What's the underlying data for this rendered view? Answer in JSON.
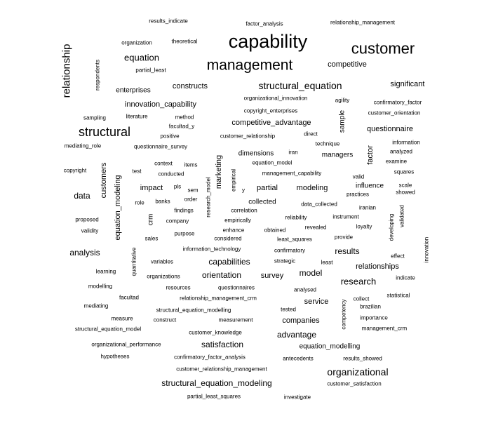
{
  "words": [
    {
      "text": "capability",
      "weight": 10
    },
    {
      "text": "customer",
      "weight": 9
    },
    {
      "text": "management",
      "weight": 8
    },
    {
      "text": "structural",
      "weight": 7
    },
    {
      "text": "relationship",
      "weight": 6
    },
    {
      "text": "structural_equation",
      "weight": 5
    },
    {
      "text": "organizational",
      "weight": 5
    },
    {
      "text": "equation",
      "weight": 5
    },
    {
      "text": "research",
      "weight": 4
    },
    {
      "text": "results",
      "weight": 4
    },
    {
      "text": "model",
      "weight": 4
    },
    {
      "text": "analysis",
      "weight": 4
    },
    {
      "text": "data",
      "weight": 4
    },
    {
      "text": "capabilities",
      "weight": 4
    },
    {
      "text": "orientation",
      "weight": 4
    },
    {
      "text": "satisfaction",
      "weight": 4
    },
    {
      "text": "advantage",
      "weight": 4
    },
    {
      "text": "structural_equation_modeling",
      "weight": 4
    },
    {
      "text": "questionnaire",
      "weight": 3
    },
    {
      "text": "competitive_advantage",
      "weight": 3
    },
    {
      "text": "innovation_capability",
      "weight": 3
    },
    {
      "text": "significant",
      "weight": 3
    },
    {
      "text": "competitive",
      "weight": 3
    },
    {
      "text": "constructs",
      "weight": 3
    },
    {
      "text": "relationships",
      "weight": 3
    },
    {
      "text": "modeling",
      "weight": 3
    },
    {
      "text": "marketing",
      "weight": 3
    },
    {
      "text": "partial",
      "weight": 3
    },
    {
      "text": "impact",
      "weight": 3
    },
    {
      "text": "survey",
      "weight": 3
    },
    {
      "text": "service",
      "weight": 3
    },
    {
      "text": "companies",
      "weight": 3
    },
    {
      "text": "customers",
      "weight": 3
    },
    {
      "text": "equation_modeling",
      "weight": 3
    },
    {
      "text": "factor",
      "weight": 2
    },
    {
      "text": "managers",
      "weight": 2
    },
    {
      "text": "dimensions",
      "weight": 2
    },
    {
      "text": "influence",
      "weight": 2
    },
    {
      "text": "collected",
      "weight": 2
    },
    {
      "text": "enterprises",
      "weight": 2
    },
    {
      "text": "crm",
      "weight": 2
    },
    {
      "text": "sample",
      "weight": 2
    },
    {
      "text": "equation_modelling",
      "weight": 2
    },
    {
      "text": "results_indicate",
      "weight": 1
    },
    {
      "text": "factor_analysis",
      "weight": 1
    },
    {
      "text": "relationship_management",
      "weight": 1
    },
    {
      "text": "organization",
      "weight": 1
    },
    {
      "text": "theoretical",
      "weight": 1
    },
    {
      "text": "respondents",
      "weight": 1
    },
    {
      "text": "partial_least",
      "weight": 1
    },
    {
      "text": "organizational_innovation",
      "weight": 1
    },
    {
      "text": "agility",
      "weight": 1
    },
    {
      "text": "confirmatory_factor",
      "weight": 1
    },
    {
      "text": "copyright_enterprises",
      "weight": 1
    },
    {
      "text": "customer_orientation",
      "weight": 1
    },
    {
      "text": "sampling",
      "weight": 1
    },
    {
      "text": "literature",
      "weight": 1
    },
    {
      "text": "method",
      "weight": 1
    },
    {
      "text": "facultad_y",
      "weight": 1
    },
    {
      "text": "positive",
      "weight": 1
    },
    {
      "text": "customer_relationship",
      "weight": 1
    },
    {
      "text": "direct",
      "weight": 1
    },
    {
      "text": "technique",
      "weight": 1
    },
    {
      "text": "information",
      "weight": 1
    },
    {
      "text": "mediating_role",
      "weight": 1
    },
    {
      "text": "questionnaire_survey",
      "weight": 1
    },
    {
      "text": "iran",
      "weight": 1
    },
    {
      "text": "analyzed",
      "weight": 1
    },
    {
      "text": "context",
      "weight": 1
    },
    {
      "text": "items",
      "weight": 1
    },
    {
      "text": "equation_model",
      "weight": 1
    },
    {
      "text": "examine",
      "weight": 1
    },
    {
      "text": "copyright",
      "weight": 1
    },
    {
      "text": "test",
      "weight": 1
    },
    {
      "text": "conducted",
      "weight": 1
    },
    {
      "text": "research_model",
      "weight": 1
    },
    {
      "text": "empirical",
      "weight": 1
    },
    {
      "text": "management_capability",
      "weight": 1
    },
    {
      "text": "squares",
      "weight": 1
    },
    {
      "text": "valid",
      "weight": 1
    },
    {
      "text": "pls",
      "weight": 1
    },
    {
      "text": "sem",
      "weight": 1
    },
    {
      "text": "y",
      "weight": 1
    },
    {
      "text": "scale",
      "weight": 1
    },
    {
      "text": "showed",
      "weight": 1
    },
    {
      "text": "practices",
      "weight": 1
    },
    {
      "text": "role",
      "weight": 1
    },
    {
      "text": "banks",
      "weight": 1
    },
    {
      "text": "order",
      "weight": 1
    },
    {
      "text": "data_collected",
      "weight": 1
    },
    {
      "text": "iranian",
      "weight": 1
    },
    {
      "text": "findings",
      "weight": 1
    },
    {
      "text": "correlation",
      "weight": 1
    },
    {
      "text": "validated",
      "weight": 1
    },
    {
      "text": "proposed",
      "weight": 1
    },
    {
      "text": "company",
      "weight": 1
    },
    {
      "text": "empirically",
      "weight": 1
    },
    {
      "text": "reliability",
      "weight": 1
    },
    {
      "text": "instrument",
      "weight": 1
    },
    {
      "text": "validity",
      "weight": 1
    },
    {
      "text": "enhance",
      "weight": 1
    },
    {
      "text": "obtained",
      "weight": 1
    },
    {
      "text": "revealed",
      "weight": 1
    },
    {
      "text": "loyalty",
      "weight": 1
    },
    {
      "text": "developing",
      "weight": 1
    },
    {
      "text": "purpose",
      "weight": 1
    },
    {
      "text": "sales",
      "weight": 1
    },
    {
      "text": "considered",
      "weight": 1
    },
    {
      "text": "least_squares",
      "weight": 1
    },
    {
      "text": "provide",
      "weight": 1
    },
    {
      "text": "information_technology",
      "weight": 1
    },
    {
      "text": "confirmatory",
      "weight": 1
    },
    {
      "text": "innovation",
      "weight": 1
    },
    {
      "text": "effect",
      "weight": 1
    },
    {
      "text": "quantitative",
      "weight": 1
    },
    {
      "text": "variables",
      "weight": 1
    },
    {
      "text": "strategic",
      "weight": 1
    },
    {
      "text": "least",
      "weight": 1
    },
    {
      "text": "learning",
      "weight": 1
    },
    {
      "text": "organizations",
      "weight": 1
    },
    {
      "text": "indicate",
      "weight": 1
    },
    {
      "text": "modelling",
      "weight": 1
    },
    {
      "text": "resources",
      "weight": 1
    },
    {
      "text": "questionnaires",
      "weight": 1
    },
    {
      "text": "analysed",
      "weight": 1
    },
    {
      "text": "statistical",
      "weight": 1
    },
    {
      "text": "facultad",
      "weight": 1
    },
    {
      "text": "relationship_management_crm",
      "weight": 1
    },
    {
      "text": "collect",
      "weight": 1
    },
    {
      "text": "mediating",
      "weight": 1
    },
    {
      "text": "structural_equation_modelling",
      "weight": 1
    },
    {
      "text": "tested",
      "weight": 1
    },
    {
      "text": "brazilian",
      "weight": 1
    },
    {
      "text": "measure",
      "weight": 1
    },
    {
      "text": "construct",
      "weight": 1
    },
    {
      "text": "measurement",
      "weight": 1
    },
    {
      "text": "competency",
      "weight": 1
    },
    {
      "text": "importance",
      "weight": 1
    },
    {
      "text": "structural_equation_model",
      "weight": 1
    },
    {
      "text": "customer_knowledge",
      "weight": 1
    },
    {
      "text": "management_crm",
      "weight": 1
    },
    {
      "text": "organizational_performance",
      "weight": 1
    },
    {
      "text": "hypotheses",
      "weight": 1
    },
    {
      "text": "confirmatory_factor_analysis",
      "weight": 1
    },
    {
      "text": "antecedents",
      "weight": 1
    },
    {
      "text": "results_showed",
      "weight": 1
    },
    {
      "text": "customer_relationship_management",
      "weight": 1
    },
    {
      "text": "customer_satisfaction",
      "weight": 1
    },
    {
      "text": "partial_least_squares",
      "weight": 1
    },
    {
      "text": "investigate",
      "weight": 1
    }
  ]
}
